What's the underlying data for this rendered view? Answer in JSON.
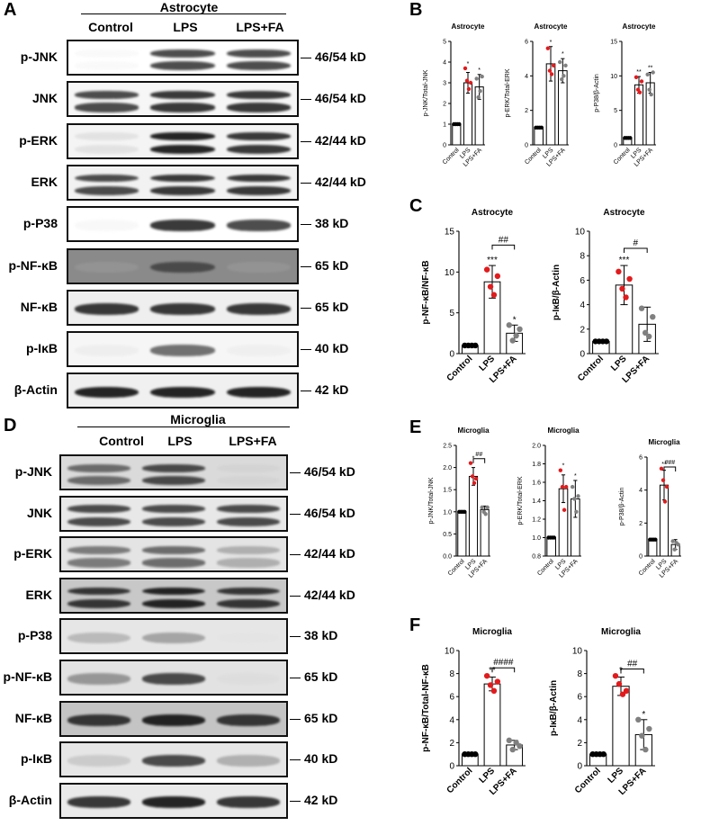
{
  "panels": {
    "A": "A",
    "B": "B",
    "C": "C",
    "D": "D",
    "E": "E",
    "F": "F"
  },
  "astro_blots": {
    "group": "Astrocyte",
    "columns": [
      "Control",
      "LPS",
      "LPS+FA"
    ],
    "rows": [
      {
        "name": "p-JNK",
        "kd": "46/54 kD",
        "bg": "#ffffff",
        "int": [
          0.05,
          0.85,
          0.85
        ],
        "double": true
      },
      {
        "name": "JNK",
        "kd": "46/54 kD",
        "bg": "#f6f6f6",
        "int": [
          0.85,
          0.9,
          0.9
        ],
        "double": true
      },
      {
        "name": "p-ERK",
        "kd": "42/44 kD",
        "bg": "#f4f4f4",
        "int": [
          0.25,
          0.95,
          0.9
        ],
        "double": true
      },
      {
        "name": "ERK",
        "kd": "42/44 kD",
        "bg": "#f2f2f2",
        "int": [
          0.85,
          0.9,
          0.9
        ],
        "double": true
      },
      {
        "name": "p-P38",
        "kd": "38 kD",
        "bg": "#ffffff",
        "int": [
          0.08,
          0.9,
          0.85
        ],
        "double": false
      },
      {
        "name": "p-NF-κB",
        "kd": "65 kD",
        "bg": "#8a8a8a",
        "int": [
          0.15,
          0.8,
          0.25
        ],
        "double": false
      },
      {
        "name": "NF-κB",
        "kd": "65 kD",
        "bg": "#efefef",
        "int": [
          0.9,
          0.9,
          0.9
        ],
        "double": false
      },
      {
        "name": "p-IκB",
        "kd": "40 kD",
        "bg": "#f6f6f6",
        "int": [
          0.15,
          0.75,
          0.12
        ],
        "double": false
      },
      {
        "name": "β-Actin",
        "kd": "42 kD",
        "bg": "#f0f0f0",
        "int": [
          0.95,
          0.95,
          0.95
        ],
        "double": false
      }
    ]
  },
  "micro_blots": {
    "group": "Microglia",
    "columns": [
      "Control",
      "LPS",
      "LPS+FA"
    ],
    "rows": [
      {
        "name": "p-JNK",
        "kd": "46/54 kD",
        "bg": "#dadada",
        "int": [
          0.75,
          0.85,
          0.2
        ],
        "double": true
      },
      {
        "name": "JNK",
        "kd": "46/54 kD",
        "bg": "#e8e8e8",
        "int": [
          0.85,
          0.85,
          0.85
        ],
        "double": true
      },
      {
        "name": "p-ERK",
        "kd": "42/44 kD",
        "bg": "#e4e4e4",
        "int": [
          0.7,
          0.75,
          0.5
        ],
        "double": true
      },
      {
        "name": "ERK",
        "kd": "42/44 kD",
        "bg": "#c8c8c8",
        "int": [
          0.9,
          0.95,
          0.9
        ],
        "double": true
      },
      {
        "name": "p-P38",
        "kd": "38 kD",
        "bg": "#e6e6e6",
        "int": [
          0.45,
          0.55,
          0.05
        ],
        "double": false
      },
      {
        "name": "p-NF-κB",
        "kd": "65 kD",
        "bg": "#e2e2e2",
        "int": [
          0.6,
          0.85,
          0.15
        ],
        "double": false
      },
      {
        "name": "NF-κB",
        "kd": "65 kD",
        "bg": "#c4c4c4",
        "int": [
          0.9,
          0.95,
          0.9
        ],
        "double": false
      },
      {
        "name": "p-IκB",
        "kd": "40 kD",
        "bg": "#e6e6e6",
        "int": [
          0.35,
          0.85,
          0.5
        ],
        "double": false
      },
      {
        "name": "β-Actin",
        "kd": "42 kD",
        "bg": "#eaeaea",
        "int": [
          0.9,
          0.95,
          0.9
        ],
        "double": false
      }
    ]
  },
  "chart_data": [
    {
      "id": "B1",
      "type": "bar",
      "title": "Astrocyte",
      "ylabel": "p-JNK/Total-JNK",
      "categories": [
        "Control",
        "LPS",
        "LPS+FA"
      ],
      "values": [
        1,
        3.0,
        2.8
      ],
      "errors": [
        0,
        0.5,
        0.6
      ],
      "ylim": [
        0,
        5
      ],
      "yticks": [
        0,
        1,
        2,
        3,
        4,
        5
      ],
      "points": [
        [
          1,
          1,
          1,
          1
        ],
        [
          3.7,
          3.1,
          2.7,
          3.0
        ],
        [
          3.2,
          2.3,
          2.6,
          3.3
        ]
      ],
      "sig": [
        "",
        "*",
        "*"
      ],
      "bracket": null
    },
    {
      "id": "B2",
      "type": "bar",
      "title": "Astrocyte",
      "ylabel": "p-ERK/Total-ERK",
      "categories": [
        "Control",
        "LPS",
        "LPS+FA"
      ],
      "values": [
        1,
        4.7,
        4.3
      ],
      "errors": [
        0,
        1.0,
        0.7
      ],
      "ylim": [
        0,
        6
      ],
      "yticks": [
        0,
        2,
        4,
        6
      ],
      "points": [
        [
          1,
          1,
          1,
          1
        ],
        [
          5.6,
          4.3,
          4.1,
          4.6
        ],
        [
          4.8,
          3.8,
          4.0,
          4.6
        ]
      ],
      "sig": [
        "",
        "*",
        "*"
      ],
      "bracket": null
    },
    {
      "id": "B3",
      "type": "bar",
      "title": "Astrocyte",
      "ylabel": "p-P38/β-Actin",
      "categories": [
        "Control",
        "LPS",
        "LPS+FA"
      ],
      "values": [
        1,
        8.7,
        9.0
      ],
      "errors": [
        0,
        1.2,
        1.5
      ],
      "ylim": [
        0,
        15
      ],
      "yticks": [
        0,
        5,
        10,
        15
      ],
      "points": [
        [
          1,
          1,
          1,
          1
        ],
        [
          9.8,
          8.0,
          7.6,
          9.2
        ],
        [
          10.2,
          8.0,
          7.3,
          10.5
        ]
      ],
      "sig": [
        "",
        "**",
        "**"
      ],
      "bracket": null
    },
    {
      "id": "C1",
      "type": "bar",
      "title": "Astrocyte",
      "ylabel": "p-NF-κB/NF-κB",
      "categories": [
        "Control",
        "LPS",
        "LPS+FA"
      ],
      "values": [
        1,
        8.8,
        2.5
      ],
      "errors": [
        0,
        2.0,
        1.0
      ],
      "ylim": [
        0,
        15
      ],
      "yticks": [
        0,
        5,
        10,
        15
      ],
      "points": [
        [
          1,
          1,
          1,
          1
        ],
        [
          10.3,
          8.2,
          7.2,
          9.5
        ],
        [
          3.5,
          1.6,
          2.2,
          3.0
        ]
      ],
      "sig": [
        "",
        "***",
        "*"
      ],
      "bracket": {
        "from": 1,
        "to": 2,
        "label": "##",
        "y": 13.3
      }
    },
    {
      "id": "C2",
      "type": "bar",
      "title": "Astrocyte",
      "ylabel": "p-IκB/β-Actin",
      "categories": [
        "Control",
        "LPS",
        "LPS+FA"
      ],
      "values": [
        1,
        5.6,
        2.4
      ],
      "errors": [
        0,
        1.6,
        1.4
      ],
      "ylim": [
        0,
        10
      ],
      "yticks": [
        0,
        2,
        4,
        6,
        8,
        10
      ],
      "points": [
        [
          1,
          1,
          1,
          1
        ],
        [
          6.7,
          5.3,
          4.6,
          6.1
        ],
        [
          3.7,
          1.7,
          1.4,
          3.0
        ]
      ],
      "sig": [
        "",
        "***",
        ""
      ],
      "bracket": {
        "from": 1,
        "to": 2,
        "label": "#",
        "y": 8.6
      }
    },
    {
      "id": "E1",
      "type": "bar",
      "title": "Microglia",
      "ylabel": "p-JNK/Total-JNK",
      "categories": [
        "Control",
        "LPS",
        "LPS+FA"
      ],
      "values": [
        1,
        1.8,
        1.05
      ],
      "errors": [
        0,
        0.2,
        0.08
      ],
      "ylim": [
        0,
        2.5
      ],
      "yticks": [
        0.0,
        0.5,
        1.0,
        1.5,
        2.0,
        2.5
      ],
      "points": [
        [
          1,
          1,
          1,
          1
        ],
        [
          2.1,
          1.8,
          1.65,
          1.75
        ],
        [
          1.1,
          1.0,
          0.95,
          1.1
        ]
      ],
      "sig": [
        "",
        "*",
        ""
      ],
      "bracket": {
        "from": 1,
        "to": 2,
        "label": "##",
        "y": 2.2
      }
    },
    {
      "id": "E2",
      "type": "bar",
      "title": "Microglia",
      "ylabel": "p-ERK/Total-ERK",
      "categories": [
        "Control",
        "LPS",
        "LPS+FA"
      ],
      "values": [
        1,
        1.53,
        1.42
      ],
      "errors": [
        0,
        0.15,
        0.2
      ],
      "ylim": [
        0.8,
        2.0
      ],
      "yticks": [
        0.8,
        1.0,
        1.2,
        1.4,
        1.6,
        1.8,
        2.0
      ],
      "points": [
        [
          1,
          1,
          1,
          1
        ],
        [
          1.73,
          1.55,
          1.3,
          1.55
        ],
        [
          1.55,
          1.42,
          1.28,
          1.45
        ]
      ],
      "sig": [
        "",
        "*",
        "*"
      ],
      "bracket": null
    },
    {
      "id": "E3",
      "type": "bar",
      "title": "Microglia",
      "ylabel": "p-P38/β-Actin",
      "categories": [
        "Control",
        "LPS",
        "LPS+FA"
      ],
      "values": [
        1,
        4.3,
        0.7
      ],
      "errors": [
        0,
        0.9,
        0.3
      ],
      "ylim": [
        0,
        6
      ],
      "yticks": [
        0,
        2,
        4,
        6
      ],
      "points": [
        [
          1,
          1,
          1,
          1
        ],
        [
          5.3,
          4.6,
          3.3,
          4.2
        ],
        [
          0.9,
          0.4,
          0.8,
          0.7
        ]
      ],
      "sig": [
        "",
        "**",
        ""
      ],
      "bracket": {
        "from": 1,
        "to": 2,
        "label": "###",
        "y": 5.4
      }
    },
    {
      "id": "F1",
      "type": "bar",
      "title": "Microglia",
      "ylabel": "p-NF-κB/Total-NF-κB",
      "categories": [
        "Control",
        "LPS",
        "LPS+FA"
      ],
      "values": [
        1,
        7.1,
        1.8
      ],
      "errors": [
        0,
        0.6,
        0.4
      ],
      "ylim": [
        0,
        10
      ],
      "yticks": [
        0,
        2,
        4,
        6,
        8,
        10
      ],
      "points": [
        [
          1,
          1,
          1,
          1
        ],
        [
          7.8,
          7.0,
          6.5,
          7.3
        ],
        [
          2.2,
          1.4,
          2.0,
          1.7
        ]
      ],
      "sig": [
        "",
        "**",
        ""
      ],
      "bracket": {
        "from": 1,
        "to": 2,
        "label": "####",
        "y": 8.5
      }
    },
    {
      "id": "F2",
      "type": "bar",
      "title": "Microglia",
      "ylabel": "p-IκB/β-Actin",
      "categories": [
        "Control",
        "LPS",
        "LPS+FA"
      ],
      "values": [
        1,
        6.9,
        2.7
      ],
      "errors": [
        0,
        0.8,
        1.3
      ],
      "ylim": [
        0,
        10
      ],
      "yticks": [
        0,
        2,
        4,
        6,
        8,
        10
      ],
      "points": [
        [
          1,
          1,
          1,
          1
        ],
        [
          7.8,
          7.1,
          6.2,
          6.5
        ],
        [
          4.0,
          2.6,
          1.4,
          3.2
        ]
      ],
      "sig": [
        "",
        "*",
        "*"
      ],
      "bracket": {
        "from": 1,
        "to": 2,
        "label": "##",
        "y": 8.4
      }
    }
  ],
  "colors": {
    "control": "#000000",
    "lps": "#e31a1c",
    "fa": "#808080"
  }
}
